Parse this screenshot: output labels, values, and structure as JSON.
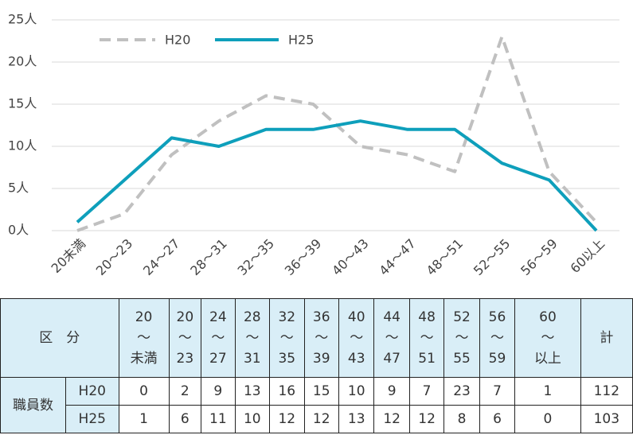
{
  "chart_data": {
    "type": "line",
    "categories": [
      "20未満",
      "20～23",
      "24～27",
      "28～31",
      "32～35",
      "36～39",
      "40～43",
      "44～47",
      "48～51",
      "52～55",
      "56～59",
      "60以上"
    ],
    "series": [
      {
        "name": "H20",
        "color": "#c0c0c0",
        "dashed": true,
        "values": [
          0,
          2,
          9,
          13,
          16,
          15,
          10,
          9,
          7,
          23,
          7,
          1
        ]
      },
      {
        "name": "H25",
        "color": "#0e9fbb",
        "dashed": false,
        "values": [
          1,
          6,
          11,
          10,
          12,
          12,
          13,
          12,
          12,
          8,
          6,
          0
        ]
      }
    ],
    "ylim": [
      0,
      25
    ],
    "yticks": [
      {
        "value": 0,
        "label": "0人"
      },
      {
        "value": 5,
        "label": "5人"
      },
      {
        "value": 10,
        "label": "10人"
      },
      {
        "value": 15,
        "label": "15人"
      },
      {
        "value": 20,
        "label": "20人"
      },
      {
        "value": 25,
        "label": "25人"
      }
    ],
    "grid": true,
    "legend": "top"
  },
  "table": {
    "corner": "区　分",
    "columns": [
      [
        "20",
        "～",
        "未満"
      ],
      [
        "20",
        "～",
        "23"
      ],
      [
        "24",
        "～",
        "27"
      ],
      [
        "28",
        "～",
        "31"
      ],
      [
        "32",
        "～",
        "35"
      ],
      [
        "36",
        "～",
        "39"
      ],
      [
        "40",
        "～",
        "43"
      ],
      [
        "44",
        "～",
        "47"
      ],
      [
        "48",
        "～",
        "51"
      ],
      [
        "52",
        "～",
        "55"
      ],
      [
        "56",
        "～",
        "59"
      ],
      [
        "60",
        "～",
        "以上"
      ],
      [
        "計"
      ]
    ],
    "group": "職員数",
    "rows": [
      {
        "label": "H20",
        "cells": [
          "0",
          "2",
          "9",
          "13",
          "16",
          "15",
          "10",
          "9",
          "7",
          "23",
          "7",
          "1",
          "112"
        ]
      },
      {
        "label": "H25",
        "cells": [
          "1",
          "6",
          "11",
          "10",
          "12",
          "12",
          "13",
          "12",
          "12",
          "8",
          "6",
          "0",
          "103"
        ]
      }
    ]
  }
}
